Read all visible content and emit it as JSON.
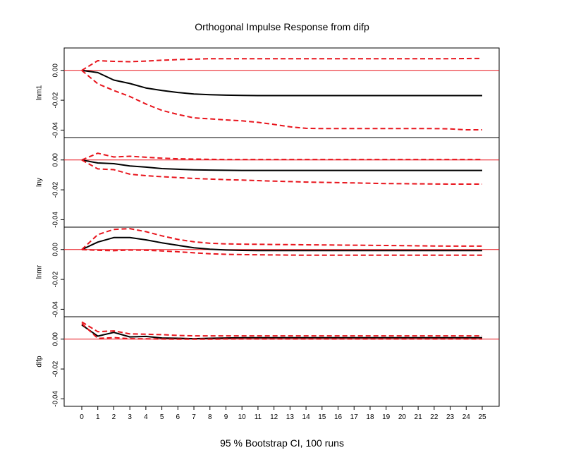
{
  "title": "Orthogonal Impulse Response from difp",
  "xlabel": "95 % Bootstrap CI,  100 runs",
  "colors": {
    "response": "#000000",
    "ci": "#e8141c",
    "zero_line": "#e8141c",
    "frame": "#000000"
  },
  "chart_data": [
    {
      "type": "line",
      "panel": "lnm1",
      "ylabel": "lnm1",
      "x": [
        0,
        1,
        2,
        3,
        4,
        5,
        6,
        7,
        8,
        9,
        10,
        11,
        12,
        13,
        14,
        15,
        16,
        17,
        18,
        19,
        20,
        21,
        22,
        23,
        24,
        25
      ],
      "x_tick_labels": [
        "0",
        "1",
        "2",
        "3",
        "4",
        "5",
        "6",
        "7",
        "8",
        "9",
        "10",
        "11",
        "12",
        "13",
        "14",
        "15",
        "16",
        "17",
        "18",
        "19",
        "20",
        "21",
        "22",
        "23",
        "24",
        "25"
      ],
      "ylim": [
        -0.045,
        0.015
      ],
      "y_ticks": [
        0.0,
        -0.02,
        -0.04
      ],
      "y_tick_labels": [
        "0.00",
        "-0.02",
        "-0.04"
      ],
      "reference_line": 0,
      "series": [
        {
          "role": "response",
          "style": "solid",
          "values": [
            0.0,
            -0.0015,
            -0.0065,
            -0.0088,
            -0.0118,
            -0.0135,
            -0.0148,
            -0.0158,
            -0.0163,
            -0.0166,
            -0.0168,
            -0.0169,
            -0.0169,
            -0.0169,
            -0.0169,
            -0.0169,
            -0.0169,
            -0.0169,
            -0.0169,
            -0.0169,
            -0.0169,
            -0.0169,
            -0.0169,
            -0.0169,
            -0.0169,
            -0.0169
          ]
        },
        {
          "role": "ci_upper",
          "style": "dashed",
          "values": [
            0.0,
            0.0065,
            0.006,
            0.0058,
            0.0062,
            0.0068,
            0.0072,
            0.0075,
            0.0078,
            0.0078,
            0.0078,
            0.0078,
            0.0078,
            0.0078,
            0.0078,
            0.0078,
            0.0078,
            0.0078,
            0.0078,
            0.0078,
            0.0078,
            0.0078,
            0.0078,
            0.0078,
            0.0079,
            0.008
          ]
        },
        {
          "role": "ci_lower",
          "style": "dashed",
          "values": [
            0.0,
            -0.009,
            -0.0135,
            -0.0175,
            -0.0225,
            -0.0268,
            -0.0295,
            -0.0318,
            -0.0325,
            -0.0332,
            -0.0338,
            -0.0348,
            -0.0362,
            -0.0378,
            -0.0388,
            -0.039,
            -0.039,
            -0.039,
            -0.039,
            -0.039,
            -0.039,
            -0.039,
            -0.039,
            -0.0392,
            -0.0398,
            -0.0398
          ]
        }
      ]
    },
    {
      "type": "line",
      "panel": "lny",
      "ylabel": "lny",
      "x": [
        0,
        1,
        2,
        3,
        4,
        5,
        6,
        7,
        8,
        9,
        10,
        11,
        12,
        13,
        14,
        15,
        16,
        17,
        18,
        19,
        20,
        21,
        22,
        23,
        24,
        25
      ],
      "x_tick_labels": [
        "0",
        "1",
        "2",
        "3",
        "4",
        "5",
        "6",
        "7",
        "8",
        "9",
        "10",
        "11",
        "12",
        "13",
        "14",
        "15",
        "16",
        "17",
        "18",
        "19",
        "20",
        "21",
        "22",
        "23",
        "24",
        "25"
      ],
      "ylim": [
        -0.045,
        0.015
      ],
      "y_ticks": [
        0.0,
        -0.02,
        -0.04
      ],
      "y_tick_labels": [
        "0.00",
        "-0.02",
        "-0.04"
      ],
      "reference_line": 0,
      "series": [
        {
          "role": "response",
          "style": "solid",
          "values": [
            0.0,
            -0.002,
            -0.0025,
            -0.004,
            -0.0048,
            -0.0058,
            -0.0062,
            -0.0066,
            -0.0068,
            -0.0069,
            -0.007,
            -0.007,
            -0.007,
            -0.007,
            -0.007,
            -0.007,
            -0.007,
            -0.007,
            -0.007,
            -0.007,
            -0.007,
            -0.007,
            -0.007,
            -0.007,
            -0.007,
            -0.007
          ]
        },
        {
          "role": "ci_upper",
          "style": "dashed",
          "values": [
            0.0,
            0.0045,
            0.002,
            0.0025,
            0.0018,
            0.0012,
            0.0008,
            0.0006,
            0.0004,
            0.0003,
            0.0003,
            0.0003,
            0.0003,
            0.0003,
            0.0003,
            0.0003,
            0.0003,
            0.0003,
            0.0003,
            0.0003,
            0.0003,
            0.0003,
            0.0003,
            0.0003,
            0.0003,
            0.0003
          ]
        },
        {
          "role": "ci_lower",
          "style": "dashed",
          "values": [
            0.0,
            -0.006,
            -0.0065,
            -0.0095,
            -0.0105,
            -0.0112,
            -0.0118,
            -0.0124,
            -0.0128,
            -0.0132,
            -0.0135,
            -0.0138,
            -0.0142,
            -0.0145,
            -0.0148,
            -0.015,
            -0.0152,
            -0.0154,
            -0.0156,
            -0.0158,
            -0.0159,
            -0.016,
            -0.0161,
            -0.0162,
            -0.0162,
            -0.0162
          ]
        }
      ]
    },
    {
      "type": "line",
      "panel": "lnmr",
      "ylabel": "lnmr",
      "x": [
        0,
        1,
        2,
        3,
        4,
        5,
        6,
        7,
        8,
        9,
        10,
        11,
        12,
        13,
        14,
        15,
        16,
        17,
        18,
        19,
        20,
        21,
        22,
        23,
        24,
        25
      ],
      "x_tick_labels": [
        "0",
        "1",
        "2",
        "3",
        "4",
        "5",
        "6",
        "7",
        "8",
        "9",
        "10",
        "11",
        "12",
        "13",
        "14",
        "15",
        "16",
        "17",
        "18",
        "19",
        "20",
        "21",
        "22",
        "23",
        "24",
        "25"
      ],
      "ylim": [
        -0.045,
        0.015
      ],
      "y_ticks": [
        0.0,
        -0.02,
        -0.04
      ],
      "y_tick_labels": [
        "0.00",
        "-0.02",
        "-0.04"
      ],
      "reference_line": 0,
      "series": [
        {
          "role": "response",
          "style": "solid",
          "values": [
            0.0,
            0.005,
            0.008,
            0.008,
            0.0065,
            0.0045,
            0.0028,
            0.0012,
            0.0002,
            -0.0003,
            -0.0006,
            -0.0007,
            -0.0007,
            -0.0007,
            -0.0007,
            -0.0007,
            -0.0007,
            -0.0007,
            -0.0007,
            -0.0007,
            -0.0007,
            -0.0007,
            -0.0007,
            -0.0007,
            -0.0007,
            -0.0007
          ]
        },
        {
          "role": "ci_upper",
          "style": "dashed",
          "values": [
            0.0,
            0.01,
            0.0135,
            0.014,
            0.012,
            0.0092,
            0.0068,
            0.0052,
            0.0042,
            0.0038,
            0.0036,
            0.0035,
            0.0034,
            0.0033,
            0.0032,
            0.0031,
            0.003,
            0.0029,
            0.0028,
            0.0027,
            0.0026,
            0.0025,
            0.0024,
            0.0023,
            0.0023,
            0.0023
          ]
        },
        {
          "role": "ci_lower",
          "style": "dashed",
          "values": [
            0.0,
            -0.0005,
            -0.0008,
            -0.0003,
            -0.0005,
            -0.0009,
            -0.0015,
            -0.0022,
            -0.0028,
            -0.0032,
            -0.0034,
            -0.0035,
            -0.0036,
            -0.0037,
            -0.0038,
            -0.0038,
            -0.0038,
            -0.0038,
            -0.0038,
            -0.0038,
            -0.0038,
            -0.0038,
            -0.0038,
            -0.0038,
            -0.0038,
            -0.0038
          ]
        }
      ]
    },
    {
      "type": "line",
      "panel": "difp",
      "ylabel": "difp",
      "x": [
        0,
        1,
        2,
        3,
        4,
        5,
        6,
        7,
        8,
        9,
        10,
        11,
        12,
        13,
        14,
        15,
        16,
        17,
        18,
        19,
        20,
        21,
        22,
        23,
        24,
        25
      ],
      "x_tick_labels": [
        "0",
        "1",
        "2",
        "3",
        "4",
        "5",
        "6",
        "7",
        "8",
        "9",
        "10",
        "11",
        "12",
        "13",
        "14",
        "15",
        "16",
        "17",
        "18",
        "19",
        "20",
        "21",
        "22",
        "23",
        "24",
        "25"
      ],
      "ylim": [
        -0.045,
        0.015
      ],
      "y_ticks": [
        0.0,
        -0.02,
        -0.04
      ],
      "y_tick_labels": [
        "0.00",
        "-0.02",
        "-0.04"
      ],
      "reference_line": 0,
      "series": [
        {
          "role": "response",
          "style": "solid",
          "values": [
            0.0095,
            0.002,
            0.0045,
            0.0015,
            0.0018,
            0.0008,
            0.0006,
            0.0003,
            0.0006,
            0.0008,
            0.0009,
            0.0009,
            0.0009,
            0.0009,
            0.0009,
            0.0009,
            0.0009,
            0.0009,
            0.0009,
            0.0009,
            0.0009,
            0.0009,
            0.0009,
            0.0009,
            0.0009,
            0.0009
          ]
        },
        {
          "role": "ci_upper",
          "style": "dashed",
          "values": [
            0.0115,
            0.005,
            0.0055,
            0.0035,
            0.0033,
            0.003,
            0.0025,
            0.0022,
            0.0022,
            0.0022,
            0.0022,
            0.0022,
            0.0022,
            0.0022,
            0.0022,
            0.0022,
            0.0022,
            0.0022,
            0.0022,
            0.0022,
            0.0022,
            0.0022,
            0.0022,
            0.0022,
            0.0022,
            0.0022
          ]
        },
        {
          "role": "ci_lower",
          "style": "dashed",
          "values": [
            0.0105,
            0.0005,
            0.001,
            0.0003,
            0.0002,
            0.0001,
            0.0,
            0.0,
            0.0,
            0.0001,
            0.0001,
            0.0001,
            0.0001,
            0.0001,
            0.0001,
            0.0001,
            0.0001,
            0.0001,
            0.0001,
            0.0001,
            0.0001,
            0.0001,
            0.0001,
            0.0001,
            0.0001,
            0.0001
          ]
        }
      ]
    }
  ]
}
